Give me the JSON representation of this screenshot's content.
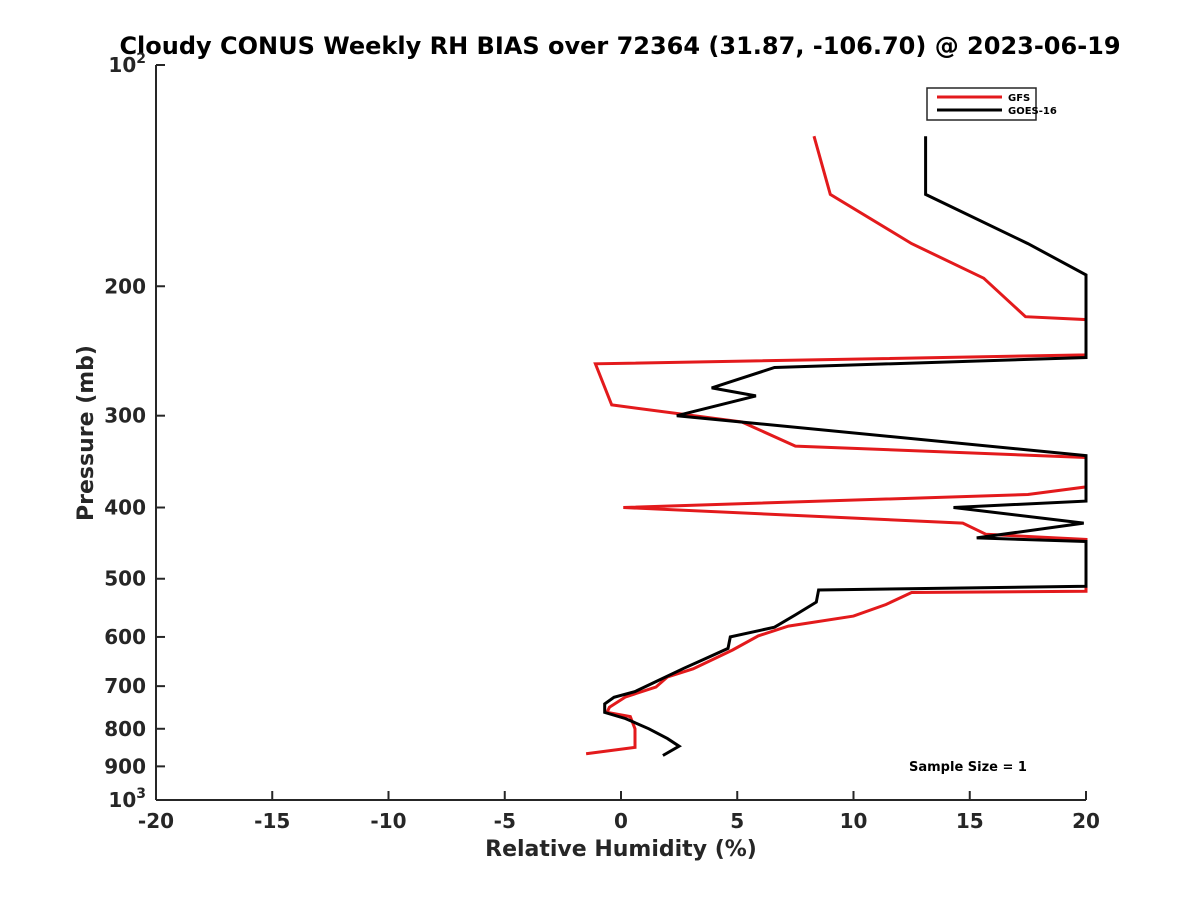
{
  "chart_data": {
    "type": "line",
    "title": "Cloudy CONUS Weekly RH BIAS over 72364 (31.87, -106.70) @ 2023-06-19",
    "xlabel": "Relative Humidity (%)",
    "ylabel": "Pressure (mb)",
    "xlim": [
      -20,
      20
    ],
    "ylim": [
      100,
      1000
    ],
    "yscale": "log",
    "y_reversed": true,
    "grid": false,
    "legend_position": "top-right",
    "x_ticks": [
      "-20",
      "-15",
      "-10",
      "-5",
      "0",
      "5",
      "10",
      "15",
      "20"
    ],
    "y_ticks": [
      {
        "value": 100,
        "base": "10",
        "exp": "2"
      },
      {
        "value": 200,
        "label": "200"
      },
      {
        "value": 300,
        "label": "300"
      },
      {
        "value": 400,
        "label": "400"
      },
      {
        "value": 500,
        "label": "500"
      },
      {
        "value": 600,
        "label": "600"
      },
      {
        "value": 700,
        "label": "700"
      },
      {
        "value": 800,
        "label": "800"
      },
      {
        "value": 900,
        "label": "900"
      },
      {
        "value": 1000,
        "base": "10",
        "exp": "3"
      }
    ],
    "series": [
      {
        "name": "GFS",
        "color": "#e31a1c",
        "points": [
          [
            8.3,
            125
          ],
          [
            9.0,
            150
          ],
          [
            12.5,
            175
          ],
          [
            15.6,
            195
          ],
          [
            17.4,
            220
          ],
          [
            20.0,
            222
          ],
          [
            20.0,
            248
          ],
          [
            -1.1,
            255
          ],
          [
            -0.4,
            290
          ],
          [
            5.2,
            306
          ],
          [
            7.5,
            330
          ],
          [
            20.0,
            342
          ],
          [
            20.0,
            375
          ],
          [
            17.5,
            384
          ],
          [
            0.1,
            400
          ],
          [
            14.7,
            420
          ],
          [
            15.7,
            435
          ],
          [
            20.0,
            442
          ],
          [
            20.0,
            520
          ],
          [
            12.5,
            522
          ],
          [
            11.4,
            542
          ],
          [
            10.0,
            562
          ],
          [
            7.2,
            580
          ],
          [
            5.9,
            598
          ],
          [
            4.8,
            625
          ],
          [
            3.1,
            663
          ],
          [
            2.0,
            680
          ],
          [
            1.5,
            702
          ],
          [
            0.2,
            724
          ],
          [
            -0.5,
            748
          ],
          [
            -0.6,
            760
          ],
          [
            0.4,
            770
          ],
          [
            0.6,
            800
          ],
          [
            0.6,
            848
          ],
          [
            -1.5,
            865
          ]
        ]
      },
      {
        "name": "GOES-16",
        "color": "#000000",
        "points": [
          [
            13.1,
            125
          ],
          [
            13.1,
            150
          ],
          [
            17.5,
            175
          ],
          [
            20.0,
            193
          ],
          [
            20.0,
            250
          ],
          [
            6.6,
            258
          ],
          [
            3.9,
            275
          ],
          [
            5.8,
            282
          ],
          [
            2.4,
            300
          ],
          [
            20.0,
            340
          ],
          [
            20.0,
            392
          ],
          [
            14.3,
            400
          ],
          [
            19.9,
            420
          ],
          [
            15.3,
            440
          ],
          [
            20.0,
            445
          ],
          [
            20.0,
            512
          ],
          [
            8.5,
            518
          ],
          [
            8.4,
            538
          ],
          [
            7.5,
            560
          ],
          [
            6.6,
            582
          ],
          [
            4.7,
            600
          ],
          [
            4.6,
            622
          ],
          [
            3.5,
            645
          ],
          [
            2.7,
            662
          ],
          [
            1.5,
            690
          ],
          [
            0.6,
            712
          ],
          [
            -0.3,
            725
          ],
          [
            -0.7,
            740
          ],
          [
            -0.7,
            760
          ],
          [
            0.2,
            775
          ],
          [
            1.2,
            800
          ],
          [
            2.0,
            825
          ],
          [
            2.5,
            845
          ],
          [
            1.8,
            870
          ]
        ]
      }
    ],
    "annotations": [
      {
        "text": "Sample Size = 1",
        "position": "bottom-right"
      }
    ]
  }
}
